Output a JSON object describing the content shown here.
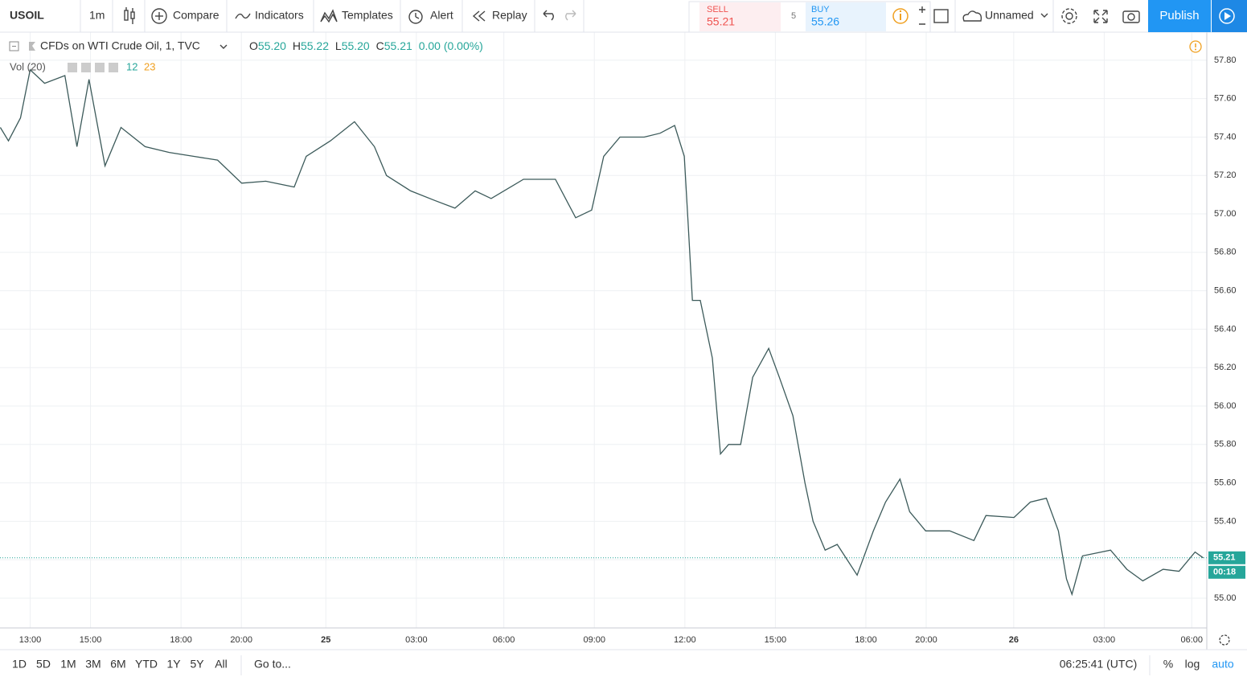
{
  "toolbar": {
    "symbol": "USOIL",
    "interval": "1m",
    "compare": "Compare",
    "indicators": "Indicators",
    "templates": "Templates",
    "alert": "Alert",
    "replay": "Replay",
    "sell_label": "SELL",
    "sell_price": "55.21",
    "spread": "5",
    "buy_label": "BUY",
    "buy_price": "55.26",
    "layout_name": "Unnamed",
    "publish": "Publish"
  },
  "legend": {
    "title": "CFDs on WTI Crude Oil, 1, TVC",
    "ohlc": [
      {
        "label": "O",
        "value": "55.20"
      },
      {
        "label": "H",
        "value": "55.22"
      },
      {
        "label": "L",
        "value": "55.20"
      },
      {
        "label": "C",
        "value": "55.21"
      }
    ],
    "change": "0.00 (0.00%)",
    "volume_label": "Vol (20)",
    "volume_values": [
      "12",
      "23"
    ]
  },
  "chart_data": {
    "type": "line",
    "x": [
      -0.99,
      -0.72,
      -0.32,
      0,
      0.48,
      1.15,
      1.55,
      1.95,
      2.48,
      3.01,
      3.81,
      4.61,
      5.41,
      6.21,
      7.01,
      7.81,
      8.75,
      9.15,
      9.95,
      10.75,
      11.41,
      11.81,
      12.61,
      13.41,
      14.08,
      14.75,
      15.28,
      16.35,
      17.41,
      18.08,
      18.61,
      19.01,
      19.55,
      20.35,
      20.88,
      21.36,
      21.68,
      21.81,
      21.95,
      22.21,
      22.61,
      22.88,
      23.15,
      23.55,
      23.95,
      24.48,
      24.83,
      25.28,
      25.68,
      25.95,
      26.35,
      26.75,
      27.41,
      27.95,
      28.35,
      28.83,
      29.15,
      29.68,
      30.48,
      31.28,
      31.68,
      32.61,
      33.15,
      33.68,
      34.08,
      34.35,
      34.53,
      34.88,
      35.81,
      36.35,
      36.88,
      37.55,
      38.08,
      38.61,
      38.88
    ],
    "series": [
      {
        "color": "#3c5a5a",
        "values": [
          57.45,
          57.38,
          57.5,
          57.75,
          57.68,
          57.72,
          57.35,
          57.7,
          57.25,
          57.45,
          57.35,
          57.32,
          57.3,
          57.28,
          57.16,
          57.17,
          57.14,
          57.3,
          57.38,
          57.48,
          57.35,
          57.2,
          57.12,
          57.07,
          57.03,
          57.12,
          57.08,
          57.18,
          57.18,
          56.98,
          57.02,
          57.3,
          57.4,
          57.4,
          57.42,
          57.46,
          57.3,
          56.95,
          56.55,
          56.55,
          56.25,
          55.75,
          55.8,
          55.8,
          56.15,
          56.3,
          56.15,
          55.95,
          55.6,
          55.4,
          55.25,
          55.28,
          55.12,
          55.35,
          55.5,
          55.62,
          55.45,
          55.35,
          55.35,
          55.3,
          55.43,
          55.42,
          55.5,
          55.52,
          55.35,
          55.1,
          55.02,
          55.22,
          55.25,
          55.15,
          55.09,
          55.15,
          55.14,
          55.24,
          55.21
        ]
      }
    ],
    "xlim": [
      -1,
      39
    ],
    "ylim": [
      54.845,
      57.946
    ],
    "yticks": [
      {
        "value": 55,
        "label": "55.00"
      },
      {
        "value": 55.2,
        "label": "55.20"
      },
      {
        "value": 55.4,
        "label": "55.40"
      },
      {
        "value": 55.6,
        "label": "55.60"
      },
      {
        "value": 55.8,
        "label": "55.80"
      },
      {
        "value": 56,
        "label": "56.00"
      },
      {
        "value": 56.2,
        "label": "56.20"
      },
      {
        "value": 56.4,
        "label": "56.40"
      },
      {
        "value": 56.6,
        "label": "56.60"
      },
      {
        "value": 56.8,
        "label": "56.80"
      },
      {
        "value": 57,
        "label": "57.00"
      },
      {
        "value": 57.2,
        "label": "57.20"
      },
      {
        "value": 57.4,
        "label": "57.40"
      },
      {
        "value": 57.6,
        "label": "57.60"
      },
      {
        "value": 57.8,
        "label": "57.80"
      }
    ],
    "xticks": [
      {
        "value": 0,
        "label": "13:00"
      },
      {
        "value": 2,
        "label": "15:00"
      },
      {
        "value": 5,
        "label": "18:00"
      },
      {
        "value": 7,
        "label": "20:00"
      },
      {
        "value": 9.8,
        "label": "25"
      },
      {
        "value": 12.8,
        "label": "03:00"
      },
      {
        "value": 15.7,
        "label": "06:00"
      },
      {
        "value": 18.7,
        "label": "09:00"
      },
      {
        "value": 21.7,
        "label": "12:00"
      },
      {
        "value": 24.7,
        "label": "15:00"
      },
      {
        "value": 27.7,
        "label": "18:00"
      },
      {
        "value": 29.7,
        "label": "20:00"
      },
      {
        "value": 32.6,
        "label": "26"
      },
      {
        "value": 35.6,
        "label": "03:00"
      },
      {
        "value": 38.5,
        "label": "06:00"
      }
    ],
    "grid": true,
    "last_value": 55.21,
    "countdown": "00:18"
  },
  "bottom": {
    "ranges": [
      "1D",
      "5D",
      "1M",
      "3M",
      "6M",
      "YTD",
      "1Y",
      "5Y",
      "All"
    ],
    "goto": "Go to...",
    "time": "06:25:41 (UTC)",
    "percent": "%",
    "log": "log",
    "auto": "auto"
  }
}
